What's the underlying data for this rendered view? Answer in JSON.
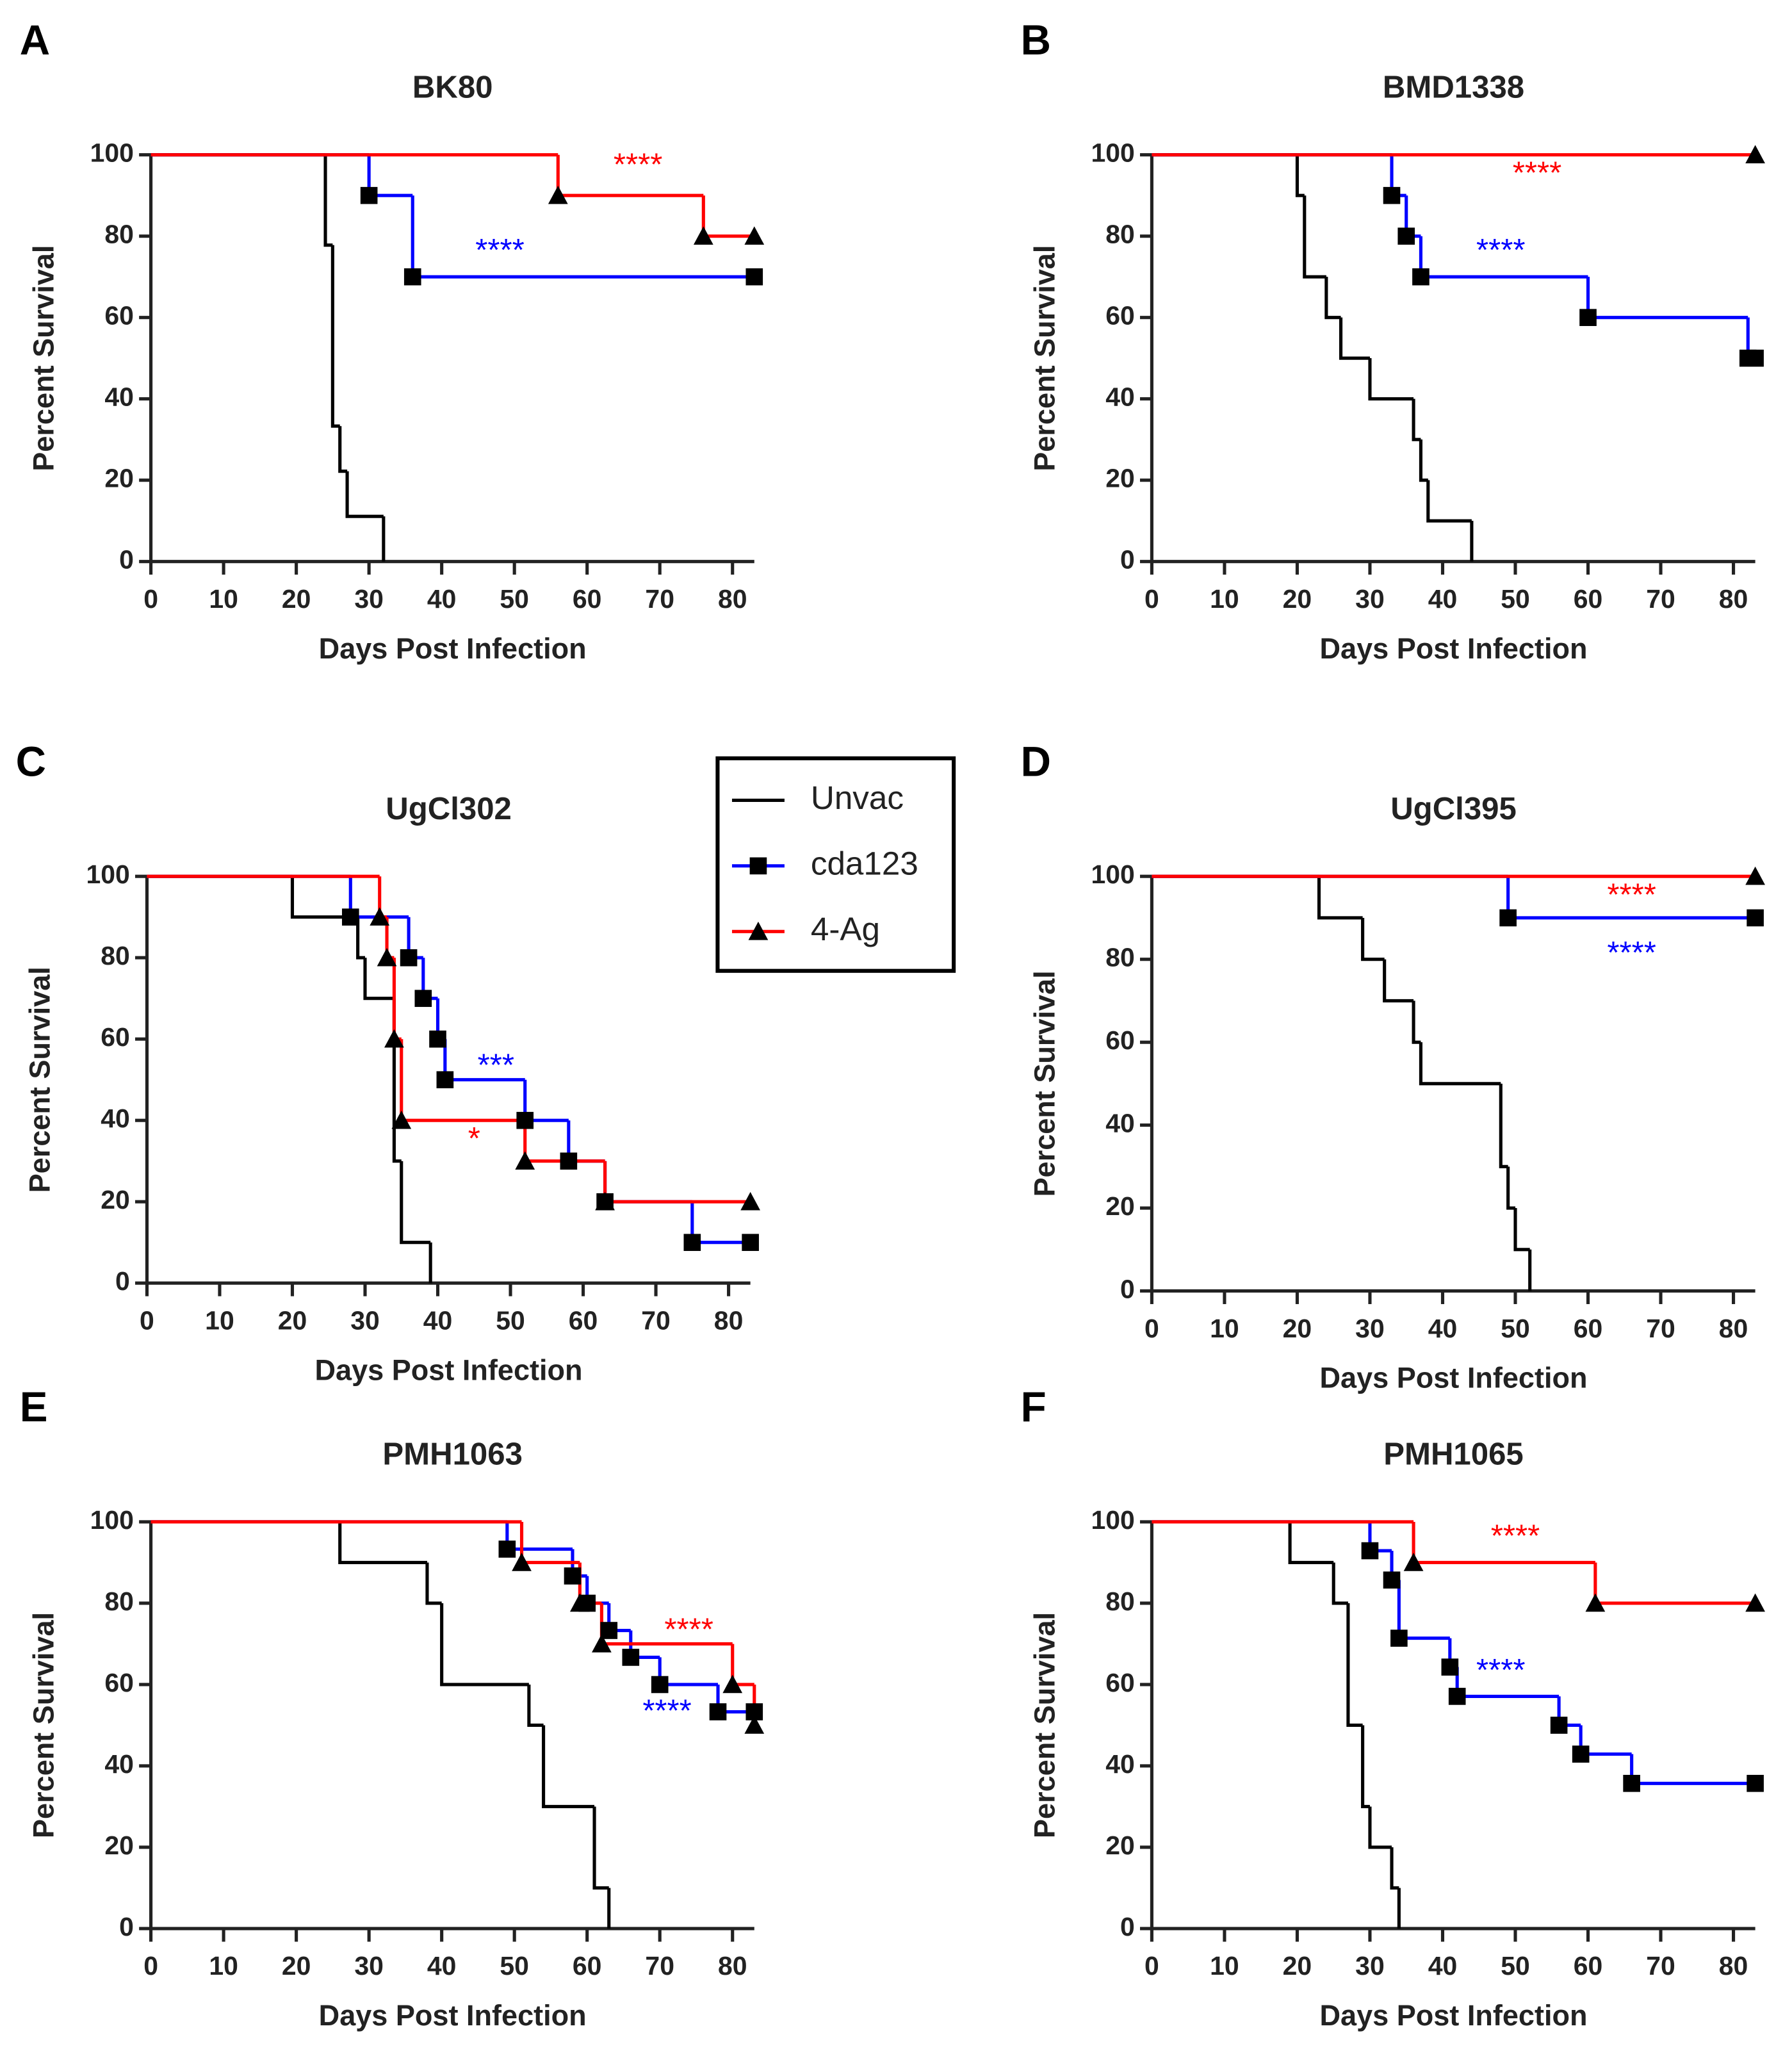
{
  "chart_data": [
    {
      "type": "survival",
      "label": "A",
      "title": "BK80",
      "xlabel": "Days Post Infection",
      "ylabel": "Percent Survival",
      "xlim": [
        0,
        83
      ],
      "xticks": [
        0,
        10,
        20,
        30,
        40,
        50,
        60,
        70,
        80
      ],
      "ylim": [
        0,
        100
      ],
      "yticks": [
        0,
        20,
        40,
        60,
        80,
        100
      ],
      "series": [
        {
          "color": "#000000",
          "x": [
            0,
            24,
            25,
            26,
            27,
            32
          ],
          "values": [
            100,
            77.8,
            33.3,
            22.2,
            11.1,
            0
          ]
        },
        {
          "color": "#0000ff",
          "marker": "square",
          "x": [
            0,
            30,
            36,
            83
          ],
          "values": [
            100,
            90,
            70,
            70
          ]
        },
        {
          "color": "#ff0000",
          "marker": "triangle",
          "x": [
            0,
            56,
            76,
            83
          ],
          "values": [
            100,
            90,
            80,
            80
          ]
        }
      ],
      "annotations": [
        {
          "text": "****",
          "color": "#ff0000"
        },
        {
          "text": "****",
          "color": "#0000ff"
        }
      ]
    },
    {
      "type": "survival",
      "label": "B",
      "title": "BMD1338",
      "xlabel": "Days Post Infection",
      "ylabel": "Percent Survival",
      "xlim": [
        0,
        83
      ],
      "xticks": [
        0,
        10,
        20,
        30,
        40,
        50,
        60,
        70,
        80
      ],
      "ylim": [
        0,
        100
      ],
      "yticks": [
        0,
        20,
        40,
        60,
        80,
        100
      ],
      "series": [
        {
          "color": "#000000",
          "x": [
            0,
            20,
            21,
            24,
            26,
            30,
            36,
            37,
            38,
            44
          ],
          "values": [
            100,
            90,
            70,
            60,
            50,
            40,
            30,
            20,
            10,
            0
          ]
        },
        {
          "color": "#0000ff",
          "marker": "square",
          "x": [
            0,
            33,
            35,
            37,
            60,
            82,
            83
          ],
          "values": [
            100,
            90,
            80,
            70,
            60,
            50,
            50
          ]
        },
        {
          "color": "#ff0000",
          "marker": "triangle",
          "x": [
            0,
            83
          ],
          "values": [
            100,
            100
          ]
        }
      ],
      "annotations": [
        {
          "text": "****",
          "color": "#ff0000"
        },
        {
          "text": "****",
          "color": "#0000ff"
        }
      ]
    },
    {
      "type": "survival",
      "label": "C",
      "title": "UgCl302",
      "xlabel": "Days Post Infection",
      "ylabel": "Percent Survival",
      "xlim": [
        0,
        83
      ],
      "xticks": [
        0,
        10,
        20,
        30,
        40,
        50,
        60,
        70,
        80
      ],
      "ylim": [
        0,
        100
      ],
      "yticks": [
        0,
        20,
        40,
        60,
        80,
        100
      ],
      "series": [
        {
          "name": "Unvac",
          "color": "#000000",
          "x": [
            0,
            20,
            29,
            30,
            34,
            35,
            39
          ],
          "values": [
            100,
            90,
            80,
            70,
            30,
            10,
            0
          ]
        },
        {
          "name": "cda123",
          "color": "#0000ff",
          "marker": "square",
          "x": [
            0,
            28,
            36,
            38,
            40,
            41,
            52,
            58,
            63,
            75,
            83
          ],
          "values": [
            100,
            90,
            80,
            70,
            60,
            50,
            40,
            30,
            20,
            10,
            10
          ]
        },
        {
          "name": "4-Ag",
          "color": "#ff0000",
          "marker": "triangle",
          "x": [
            0,
            32,
            33,
            34,
            35,
            52,
            63,
            83
          ],
          "values": [
            100,
            90,
            80,
            60,
            40,
            30,
            20,
            20
          ]
        }
      ],
      "annotations": [
        {
          "text": "***",
          "color": "#0000ff"
        },
        {
          "text": "*",
          "color": "#ff0000"
        }
      ]
    },
    {
      "type": "survival",
      "label": "D",
      "title": "UgCl395",
      "xlabel": "Days Post Infection",
      "ylabel": "Percent Survival",
      "xlim": [
        0,
        83
      ],
      "xticks": [
        0,
        10,
        20,
        30,
        40,
        50,
        60,
        70,
        80
      ],
      "ylim": [
        0,
        100
      ],
      "yticks": [
        0,
        20,
        40,
        60,
        80,
        100
      ],
      "series": [
        {
          "color": "#000000",
          "x": [
            0,
            23,
            29,
            32,
            36,
            37,
            48,
            49,
            50,
            52
          ],
          "values": [
            100,
            90,
            80,
            70,
            60,
            50,
            30,
            20,
            10,
            0
          ]
        },
        {
          "color": "#0000ff",
          "marker": "square",
          "x": [
            0,
            49,
            83
          ],
          "values": [
            100,
            90,
            90
          ]
        },
        {
          "color": "#ff0000",
          "marker": "triangle",
          "x": [
            0,
            83
          ],
          "values": [
            100,
            100
          ]
        }
      ],
      "annotations": [
        {
          "text": "****",
          "color": "#ff0000"
        },
        {
          "text": "****",
          "color": "#0000ff"
        }
      ]
    },
    {
      "type": "survival",
      "label": "E",
      "title": "PMH1063",
      "xlabel": "Days Post Infection",
      "ylabel": "Percent Survival",
      "xlim": [
        0,
        83
      ],
      "xticks": [
        0,
        10,
        20,
        30,
        40,
        50,
        60,
        70,
        80
      ],
      "ylim": [
        0,
        100
      ],
      "yticks": [
        0,
        20,
        40,
        60,
        80,
        100
      ],
      "series": [
        {
          "color": "#000000",
          "x": [
            0,
            26,
            38,
            40,
            52,
            54,
            61,
            63
          ],
          "values": [
            100,
            90,
            80,
            60,
            50,
            30,
            10,
            0
          ]
        },
        {
          "color": "#0000ff",
          "marker": "square",
          "x": [
            0,
            49,
            58,
            60,
            63,
            66,
            70,
            78,
            83
          ],
          "values": [
            100,
            93.3,
            86.7,
            80,
            73.3,
            66.7,
            60,
            53.3,
            53.3
          ]
        },
        {
          "color": "#ff0000",
          "marker": "triangle",
          "x": [
            0,
            51,
            59,
            62,
            80,
            83
          ],
          "values": [
            100,
            90,
            80,
            70,
            60,
            50
          ]
        }
      ],
      "annotations": [
        {
          "text": "****",
          "color": "#ff0000"
        },
        {
          "text": "****",
          "color": "#0000ff"
        }
      ]
    },
    {
      "type": "survival",
      "label": "F",
      "title": "PMH1065",
      "xlabel": "Days Post Infection",
      "ylabel": "Percent Survival",
      "xlim": [
        0,
        83
      ],
      "xticks": [
        0,
        10,
        20,
        30,
        40,
        50,
        60,
        70,
        80
      ],
      "ylim": [
        0,
        100
      ],
      "yticks": [
        0,
        20,
        40,
        60,
        80,
        100
      ],
      "series": [
        {
          "color": "#000000",
          "x": [
            0,
            19,
            25,
            27,
            29,
            30,
            33,
            34
          ],
          "values": [
            100,
            90,
            80,
            50,
            30,
            20,
            10,
            0
          ]
        },
        {
          "color": "#0000ff",
          "marker": "square",
          "x": [
            0,
            30,
            33,
            34,
            41,
            42,
            56,
            59,
            66,
            83
          ],
          "values": [
            100,
            92.9,
            85.7,
            71.4,
            64.3,
            57.1,
            50,
            42.9,
            35.7,
            35.7
          ]
        },
        {
          "color": "#ff0000",
          "marker": "triangle",
          "x": [
            0,
            36,
            61,
            83
          ],
          "values": [
            100,
            90,
            80,
            80
          ]
        }
      ],
      "annotations": [
        {
          "text": "****",
          "color": "#ff0000"
        },
        {
          "text": "****",
          "color": "#0000ff"
        }
      ]
    }
  ]
}
